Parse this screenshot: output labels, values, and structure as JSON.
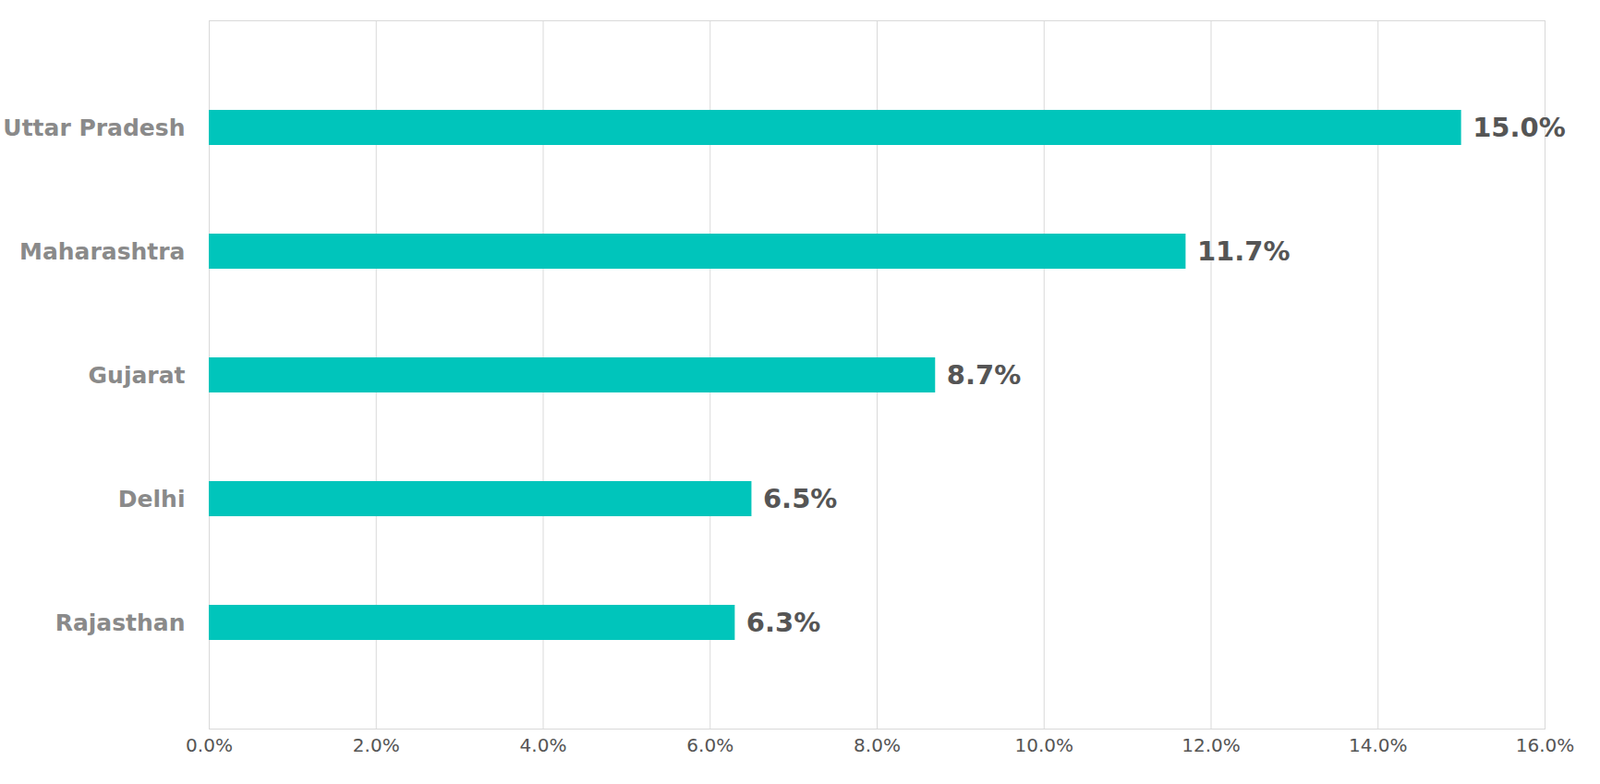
{
  "chart_data": {
    "type": "bar",
    "orientation": "horizontal",
    "categories": [
      "Uttar Pradesh",
      "Maharashtra",
      "Gujarat",
      "Delhi",
      "Rajasthan"
    ],
    "values": [
      15.0,
      11.7,
      8.7,
      6.5,
      6.3
    ],
    "value_labels": [
      "15.0%",
      "11.7%",
      "8.7%",
      "6.5%",
      "6.3%"
    ],
    "color": "#00c5bb",
    "xlim": [
      0,
      16
    ],
    "xticks": [
      {
        "value": 0,
        "label": "0.0%"
      },
      {
        "value": 2,
        "label": "2.0%"
      },
      {
        "value": 4,
        "label": "4.0%"
      },
      {
        "value": 6,
        "label": "6.0%"
      },
      {
        "value": 8,
        "label": "8.0%"
      },
      {
        "value": 10,
        "label": "10.0%"
      },
      {
        "value": 12,
        "label": "12.0%"
      },
      {
        "value": 14,
        "label": "14.0%"
      },
      {
        "value": 16,
        "label": "16.0%"
      }
    ],
    "grid": true,
    "data_labels": true
  }
}
